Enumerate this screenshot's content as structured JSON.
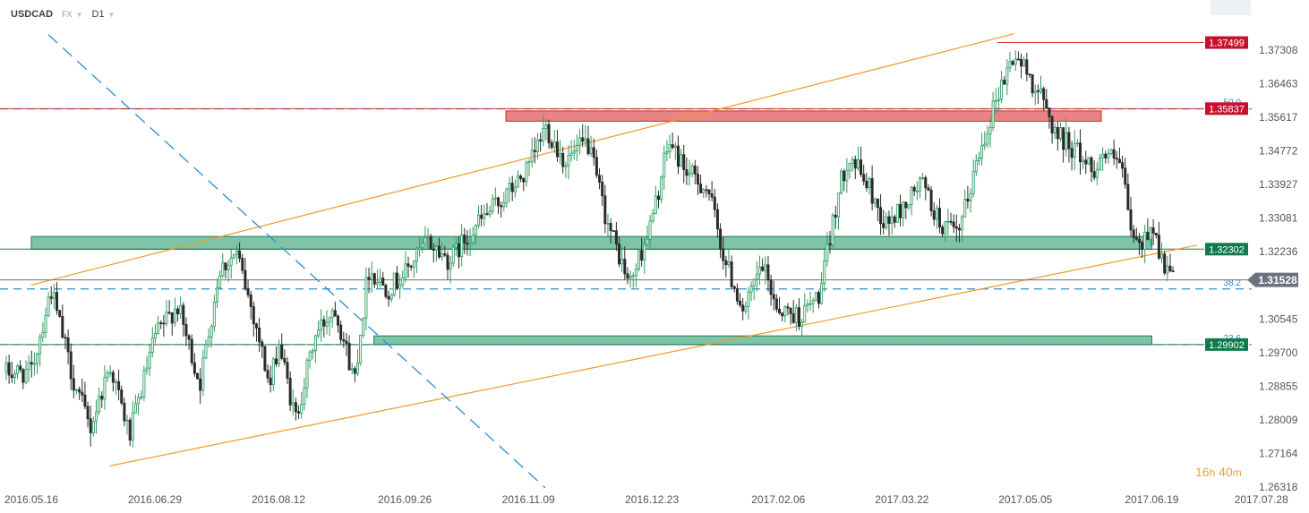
{
  "header": {
    "symbol": "USDCAD",
    "market": "FX",
    "timeframe": "D1"
  },
  "countdown": {
    "hours": "16",
    "hours_unit": "h",
    "minutes": "40",
    "minutes_unit": "m"
  },
  "colors": {
    "bull": "#2e9b62",
    "bear": "#2b2b2b",
    "channel": "#f29a1f",
    "fib": "#2a8fd0",
    "resistance_zone": "#e05555",
    "support_zone": "#3aa57a",
    "resistance_label": "#c8102e",
    "support_label": "#0e7a4d",
    "current_label": "#6b7380"
  },
  "chart_data": {
    "type": "candlestick",
    "instrument": "USDCAD",
    "timeframe": "D1",
    "x_tick_labels": [
      "2016.05.16",
      "2016.06.29",
      "2016.08.12",
      "2016.09.26",
      "2016.11.09",
      "2016.12.23",
      "2017.02.06",
      "2017.03.22",
      "2017.05.05",
      "2017.06.19",
      "2017.07.28"
    ],
    "y_tick_labels": [
      "1.37308",
      "1.36463",
      "1.35617",
      "1.34772",
      "1.33927",
      "1.33081",
      "1.32236",
      "1.30545",
      "1.29700",
      "1.28855",
      "1.28009",
      "1.27164",
      "1.26318"
    ],
    "ylim": [
      1.26318,
      1.3788
    ],
    "close_path": [
      [
        "2016.05.16",
        1.292
      ],
      [
        "2016.05.23",
        1.313
      ],
      [
        "2016.05.31",
        1.29
      ],
      [
        "2016.06.06",
        1.278
      ],
      [
        "2016.06.13",
        1.294
      ],
      [
        "2016.06.20",
        1.276
      ],
      [
        "2016.06.29",
        1.301
      ],
      [
        "2016.07.07",
        1.309
      ],
      [
        "2016.07.15",
        1.289
      ],
      [
        "2016.07.22",
        1.318
      ],
      [
        "2016.07.28",
        1.322
      ],
      [
        "2016.08.04",
        1.304
      ],
      [
        "2016.08.09",
        1.288
      ],
      [
        "2016.08.12",
        1.3
      ],
      [
        "2016.08.18",
        1.28
      ],
      [
        "2016.08.25",
        1.301
      ],
      [
        "2016.09.01",
        1.309
      ],
      [
        "2016.09.08",
        1.29
      ],
      [
        "2016.09.13",
        1.318
      ],
      [
        "2016.09.20",
        1.313
      ],
      [
        "2016.09.26",
        1.317
      ],
      [
        "2016.10.04",
        1.325
      ],
      [
        "2016.10.12",
        1.32
      ],
      [
        "2016.10.20",
        1.328
      ],
      [
        "2016.10.27",
        1.333
      ],
      [
        "2016.11.03",
        1.338
      ],
      [
        "2016.11.09",
        1.343
      ],
      [
        "2016.11.15",
        1.354
      ],
      [
        "2016.11.22",
        1.345
      ],
      [
        "2016.11.30",
        1.35
      ],
      [
        "2016.12.07",
        1.33
      ],
      [
        "2016.12.15",
        1.314
      ],
      [
        "2016.12.23",
        1.33
      ],
      [
        "2016.12.29",
        1.35
      ],
      [
        "2017.01.05",
        1.342
      ],
      [
        "2017.01.12",
        1.338
      ],
      [
        "2017.01.18",
        1.32
      ],
      [
        "2017.01.25",
        1.307
      ],
      [
        "2017.01.31",
        1.319
      ],
      [
        "2017.02.06",
        1.308
      ],
      [
        "2017.02.14",
        1.306
      ],
      [
        "2017.02.21",
        1.312
      ],
      [
        "2017.02.27",
        1.336
      ],
      [
        "2017.03.03",
        1.347
      ],
      [
        "2017.03.10",
        1.339
      ],
      [
        "2017.03.16",
        1.329
      ],
      [
        "2017.03.22",
        1.333
      ],
      [
        "2017.03.29",
        1.34
      ],
      [
        "2017.04.04",
        1.33
      ],
      [
        "2017.04.11",
        1.326
      ],
      [
        "2017.04.18",
        1.346
      ],
      [
        "2017.04.25",
        1.362
      ],
      [
        "2017.05.01",
        1.372
      ],
      [
        "2017.05.05",
        1.368
      ],
      [
        "2017.05.10",
        1.362
      ],
      [
        "2017.05.16",
        1.352
      ],
      [
        "2017.05.23",
        1.348
      ],
      [
        "2017.05.29",
        1.343
      ],
      [
        "2017.06.02",
        1.347
      ],
      [
        "2017.06.08",
        1.344
      ],
      [
        "2017.06.12",
        1.326
      ],
      [
        "2017.06.15",
        1.323
      ],
      [
        "2017.06.19",
        1.33
      ],
      [
        "2017.06.23",
        1.319
      ],
      [
        "2017.06.27",
        1.3153
      ]
    ],
    "levels": [
      {
        "label": "1.37499",
        "value": 1.37499,
        "kind": "resistance"
      },
      {
        "label": "1.35837",
        "value": 1.35837,
        "kind": "resistance"
      },
      {
        "label": "1.32302",
        "value": 1.32302,
        "kind": "support"
      },
      {
        "label": "1.29902",
        "value": 1.29902,
        "kind": "support"
      }
    ],
    "current_price": {
      "label": "1.31528",
      "value": 1.31528
    },
    "zones": [
      {
        "kind": "resistance",
        "from_date": "2016.11.01",
        "to_date": "2017.06.01",
        "low": 1.3552,
        "high": 1.3578
      },
      {
        "kind": "support",
        "from_date": "2016.05.16",
        "to_date": "2017.06.19",
        "low": 1.323,
        "high": 1.3262
      },
      {
        "kind": "support",
        "from_date": "2016.09.15",
        "to_date": "2017.06.19",
        "low": 1.299,
        "high": 1.3012
      }
    ],
    "fibonacci": [
      {
        "label": "38.2",
        "value": 1.313
      },
      {
        "label": "23.6",
        "value": 1.299
      },
      {
        "label": "50.0",
        "value": 1.3583
      }
    ],
    "trendlines": [
      {
        "kind": "channel-upper",
        "from": [
          "2016.05.16",
          1.314
        ],
        "to": [
          "2017.05.01",
          1.3772
        ]
      },
      {
        "kind": "channel-lower",
        "from": [
          "2016.06.13",
          1.2685
        ],
        "to": [
          "2017.07.05",
          1.324
        ]
      },
      {
        "kind": "fib-diagonal",
        "from": [
          "2016.05.22",
          1.377
        ],
        "to": [
          "2016.11.15",
          1.263
        ]
      }
    ]
  }
}
